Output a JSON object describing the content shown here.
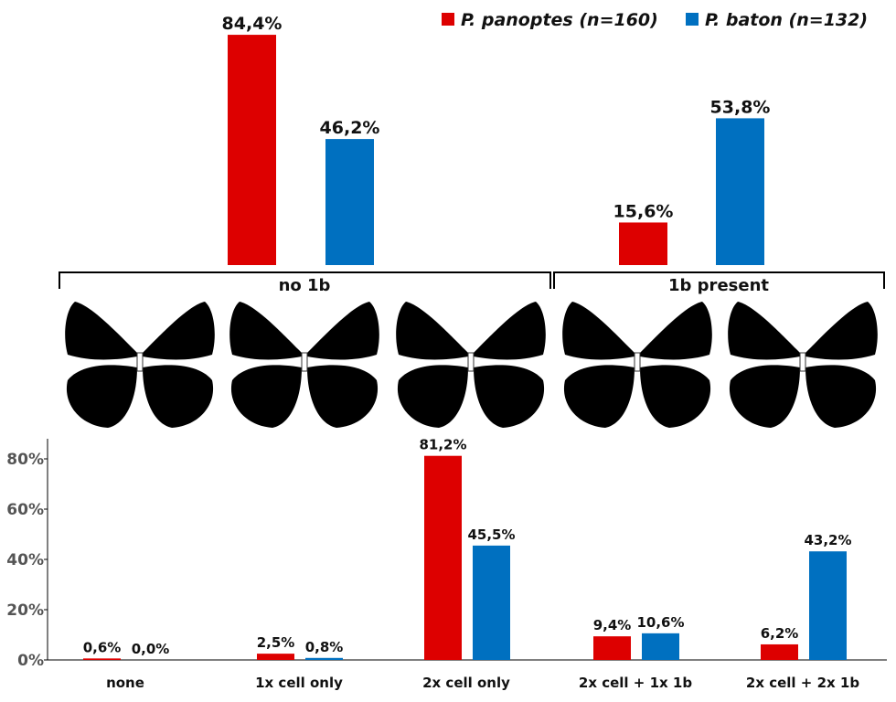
{
  "chart_data": [
    {
      "type": "bar",
      "categories": [
        "no 1b",
        "1b present"
      ],
      "series": [
        {
          "name": "P. panoptes (n=160)",
          "color": "#dd0000",
          "values": [
            84.4,
            15.6
          ],
          "value_labels": [
            "84,4%",
            "15,6%"
          ]
        },
        {
          "name": "P. baton (n=132)",
          "color": "#0070c0",
          "values": [
            46.2,
            53.8
          ],
          "value_labels": [
            "46,2%",
            "53,8%"
          ]
        }
      ],
      "legend": "top-right"
    },
    {
      "type": "bar",
      "categories": [
        "none",
        "1x cell only",
        "2x cell only",
        "2x cell + 1x 1b",
        "2x cell + 2x 1b"
      ],
      "series": [
        {
          "color": "#dd0000",
          "values": [
            0.6,
            2.5,
            81.2,
            9.4,
            6.2
          ],
          "value_labels": [
            "0,6%",
            "2,5%",
            "81,2%",
            "9,4%",
            "6,2%"
          ]
        },
        {
          "color": "#0070c0",
          "values": [
            0.0,
            0.8,
            45.5,
            10.6,
            43.2
          ],
          "value_labels": [
            "0,0%",
            "0,8%",
            "45,5%",
            "10,6%",
            "43,2%"
          ]
        }
      ],
      "ylim": [
        0,
        88
      ],
      "yticks": [
        {
          "value": 0,
          "label": "0%"
        },
        {
          "value": 20,
          "label": "20%"
        },
        {
          "value": 40,
          "label": "40%"
        },
        {
          "value": 60,
          "label": "60%"
        },
        {
          "value": 80,
          "label": "80%"
        }
      ]
    }
  ]
}
